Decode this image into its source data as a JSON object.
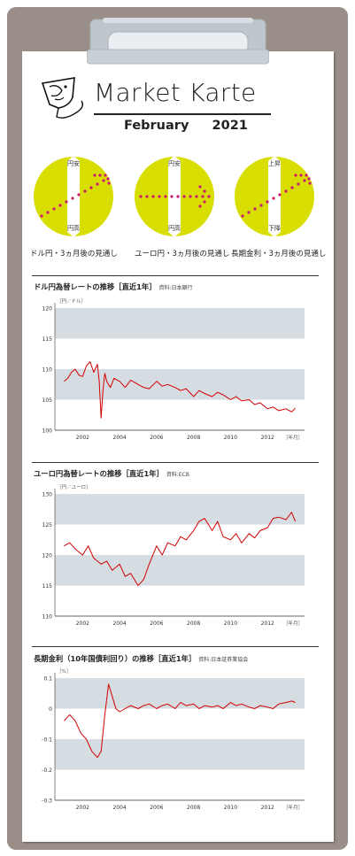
{
  "header": {
    "title": "Market Karte",
    "subtitle_month": "February",
    "subtitle_year": "2021"
  },
  "outlook": [
    {
      "caption": "ドル円・3ヵ月後の見通し",
      "top_label": "円安",
      "bottom_label": "円高",
      "direction": "up"
    },
    {
      "caption": "ユーロ円・3ヵ月後の見通し",
      "top_label": "円安",
      "bottom_label": "円高",
      "direction": "flat"
    },
    {
      "caption": "長期金利・3ヵ月後の見通し",
      "top_label": "上昇",
      "bottom_label": "下降",
      "direction": "up"
    }
  ],
  "colors": {
    "accent": "#d8de00",
    "arrow": "#cc1a6e",
    "line": "#d40000",
    "band": "#d5dce2",
    "board": "#9a8f88"
  },
  "charts_meta": [
    {
      "title": "ドル円為替レートの推移［直近1年］",
      "source": "資料:日本銀行"
    },
    {
      "title": "ユーロ円為替レートの推移［直近1年］",
      "source": "資料:ECB"
    },
    {
      "title": "長期金利（10年国債利回り）の推移［直近1年］",
      "source": "資料:日本証券業協会"
    }
  ],
  "chart_data": [
    {
      "type": "line",
      "title": "ドル円為替レートの推移［直近1年］",
      "ylabel": "［円／ドル］",
      "xlabel": "［年月］",
      "ylim": [
        100,
        120
      ],
      "yticks": [
        "100",
        "105",
        "110",
        "115",
        "120"
      ],
      "xticks": [
        "2002",
        "2004",
        "2006",
        "2008",
        "2010",
        "2012"
      ],
      "xlim": [
        2000.5,
        2014.0
      ],
      "series": [
        {
          "x": [
            2001.0,
            2001.2,
            2001.4,
            2001.6,
            2001.8,
            2002.0,
            2002.2,
            2002.4,
            2002.6,
            2002.8,
            2002.9,
            2003.0,
            2003.1,
            2003.2,
            2003.3,
            2003.5,
            2003.7,
            2004.0,
            2004.3,
            2004.6,
            2005.0,
            2005.3,
            2005.6,
            2006.0,
            2006.3,
            2006.6,
            2007.0,
            2007.3,
            2007.6,
            2008.0,
            2008.3,
            2008.6,
            2009.0,
            2009.3,
            2009.6,
            2010.0,
            2010.3,
            2010.6,
            2011.0,
            2011.3,
            2011.6,
            2012.0,
            2012.3,
            2012.6,
            2013.0,
            2013.3,
            2013.5
          ],
          "y": [
            108.0,
            108.5,
            109.5,
            110.0,
            109.0,
            108.8,
            110.5,
            111.2,
            109.5,
            110.8,
            108.0,
            102.0,
            106.5,
            109.3,
            108.0,
            107.0,
            108.5,
            108.0,
            107.0,
            108.2,
            107.5,
            107.0,
            106.8,
            108.0,
            107.2,
            107.5,
            107.0,
            106.5,
            106.8,
            105.5,
            106.5,
            106.0,
            105.5,
            106.2,
            105.8,
            105.0,
            105.5,
            104.8,
            105.0,
            104.2,
            104.5,
            103.5,
            103.8,
            103.2,
            103.5,
            103.0,
            103.6
          ]
        }
      ]
    },
    {
      "type": "line",
      "title": "ユーロ円為替レートの推移［直近1年］",
      "ylabel": "［円／ユーロ］",
      "xlabel": "［年月］",
      "ylim": [
        110,
        130
      ],
      "yticks": [
        "110",
        "115",
        "120",
        "125",
        "130"
      ],
      "xticks": [
        "2002",
        "2004",
        "2006",
        "2008",
        "2010",
        "2012"
      ],
      "xlim": [
        2000.5,
        2014.0
      ],
      "series": [
        {
          "x": [
            2001.0,
            2001.3,
            2001.6,
            2002.0,
            2002.3,
            2002.6,
            2003.0,
            2003.3,
            2003.6,
            2004.0,
            2004.3,
            2004.6,
            2005.0,
            2005.3,
            2005.6,
            2006.0,
            2006.3,
            2006.6,
            2007.0,
            2007.3,
            2007.6,
            2008.0,
            2008.3,
            2008.6,
            2009.0,
            2009.3,
            2009.6,
            2010.0,
            2010.3,
            2010.6,
            2011.0,
            2011.3,
            2011.6,
            2012.0,
            2012.3,
            2012.6,
            2013.0,
            2013.3,
            2013.5
          ],
          "y": [
            121.5,
            122.0,
            121.0,
            120.0,
            121.5,
            119.5,
            118.5,
            119.0,
            117.5,
            118.5,
            116.5,
            117.0,
            115.0,
            116.0,
            118.5,
            121.5,
            120.0,
            122.0,
            121.5,
            123.0,
            122.5,
            124.0,
            125.5,
            126.0,
            124.0,
            125.5,
            123.0,
            122.5,
            123.5,
            122.0,
            123.5,
            122.8,
            124.0,
            124.5,
            126.0,
            126.2,
            125.8,
            127.0,
            125.5
          ]
        }
      ]
    },
    {
      "type": "line",
      "title": "長期金利（10年国債利回り）の推移［直近1年］",
      "ylabel": "［%］",
      "xlabel": "［年月］",
      "ylim": [
        -0.3,
        0.1
      ],
      "yticks": [
        "-0.3",
        "-0.2",
        "-0.1",
        "0",
        "0.1"
      ],
      "xticks": [
        "2002",
        "2004",
        "2006",
        "2008",
        "2010",
        "2012"
      ],
      "xlim": [
        2000.5,
        2014.0
      ],
      "series": [
        {
          "x": [
            2001.0,
            2001.3,
            2001.6,
            2001.9,
            2002.2,
            2002.5,
            2002.8,
            2003.0,
            2003.2,
            2003.4,
            2003.6,
            2003.8,
            2004.0,
            2004.3,
            2004.6,
            2005.0,
            2005.3,
            2005.6,
            2006.0,
            2006.3,
            2006.6,
            2007.0,
            2007.3,
            2007.6,
            2008.0,
            2008.3,
            2008.6,
            2009.0,
            2009.3,
            2009.6,
            2010.0,
            2010.3,
            2010.6,
            2011.0,
            2011.3,
            2011.6,
            2012.0,
            2012.3,
            2012.6,
            2013.0,
            2013.3,
            2013.5
          ],
          "y": [
            -0.04,
            -0.02,
            -0.04,
            -0.08,
            -0.1,
            -0.14,
            -0.16,
            -0.14,
            -0.02,
            0.08,
            0.04,
            0.0,
            -0.01,
            0.0,
            0.01,
            0.0,
            0.01,
            0.015,
            0.0,
            0.01,
            0.015,
            0.0,
            0.02,
            0.01,
            0.015,
            0.0,
            0.01,
            0.005,
            0.01,
            0.0,
            0.02,
            0.01,
            0.015,
            0.005,
            0.0,
            0.01,
            0.005,
            0.0,
            0.015,
            0.02,
            0.025,
            0.02
          ]
        }
      ]
    }
  ]
}
